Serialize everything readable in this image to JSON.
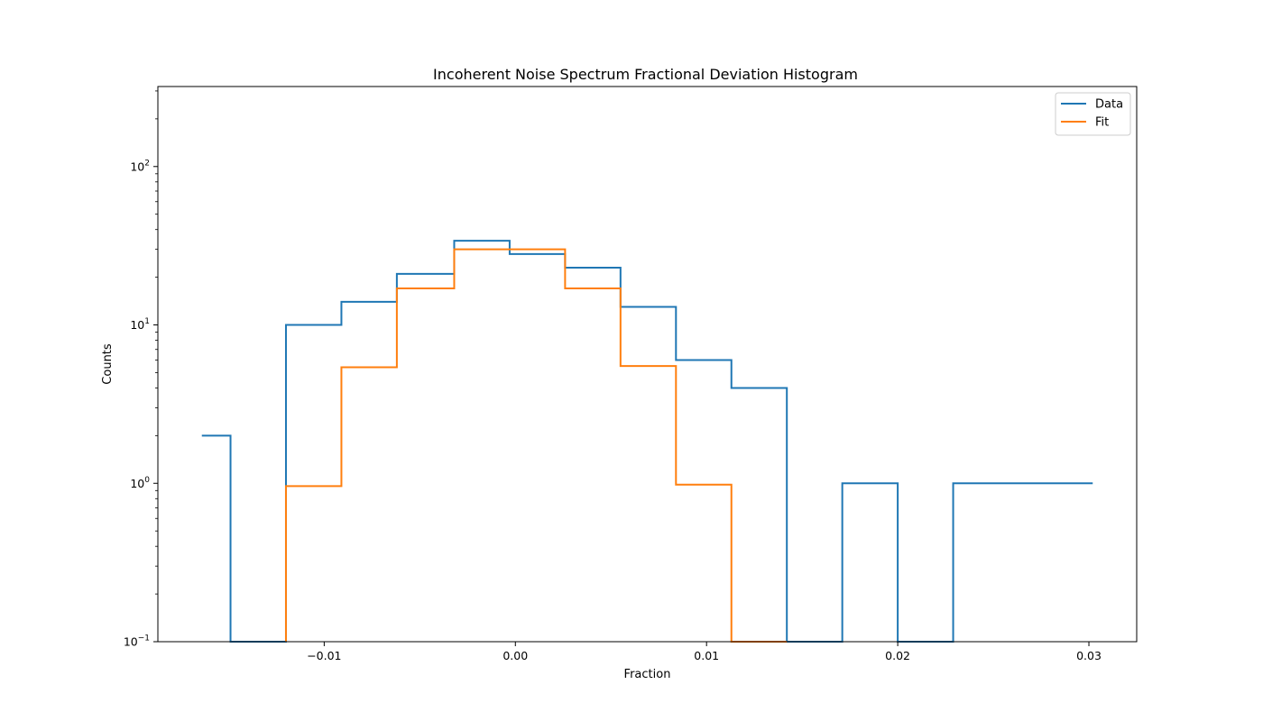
{
  "chart_data": {
    "type": "step-histogram",
    "title": "Incoherent Noise Spectrum Fractional Deviation Histogram",
    "xlabel": "Fraction",
    "ylabel": "Counts",
    "xlim": [
      -0.0187,
      0.0325
    ],
    "ylim": [
      0.1,
      320
    ],
    "yscale": "log",
    "grid": false,
    "legend_position": "top-right",
    "x_ticks": [
      {
        "value": -0.01,
        "label": "−0.01"
      },
      {
        "value": 0.0,
        "label": "0.00"
      },
      {
        "value": 0.01,
        "label": "0.01"
      },
      {
        "value": 0.02,
        "label": "0.02"
      },
      {
        "value": 0.03,
        "label": "0.03"
      }
    ],
    "y_ticks": [
      {
        "value": 0.1,
        "base": "10",
        "exp": "−1"
      },
      {
        "value": 1,
        "base": "10",
        "exp": "0"
      },
      {
        "value": 10,
        "base": "10",
        "exp": "1"
      },
      {
        "value": 100,
        "base": "10",
        "exp": "2"
      }
    ],
    "bin_edges": [
      -0.0164,
      -0.0149,
      -0.012,
      -0.0091,
      -0.0062,
      -0.0032,
      -0.0003,
      0.0026,
      0.0055,
      0.0084,
      0.0113,
      0.0142,
      0.0171,
      0.02,
      0.0229,
      0.0258,
      0.0302
    ],
    "series": [
      {
        "name": "Data",
        "color": "#1f77b4",
        "values": [
          2,
          0,
          10,
          14,
          21,
          34,
          28,
          23,
          13,
          6,
          4,
          0,
          1,
          0,
          1,
          1
        ]
      },
      {
        "name": "Fit",
        "color": "#ff7f0e",
        "values": [
          null,
          null,
          0.96,
          5.4,
          17,
          30,
          30,
          17,
          5.5,
          0.98,
          0.1,
          null,
          null,
          null,
          null,
          null
        ]
      }
    ]
  }
}
